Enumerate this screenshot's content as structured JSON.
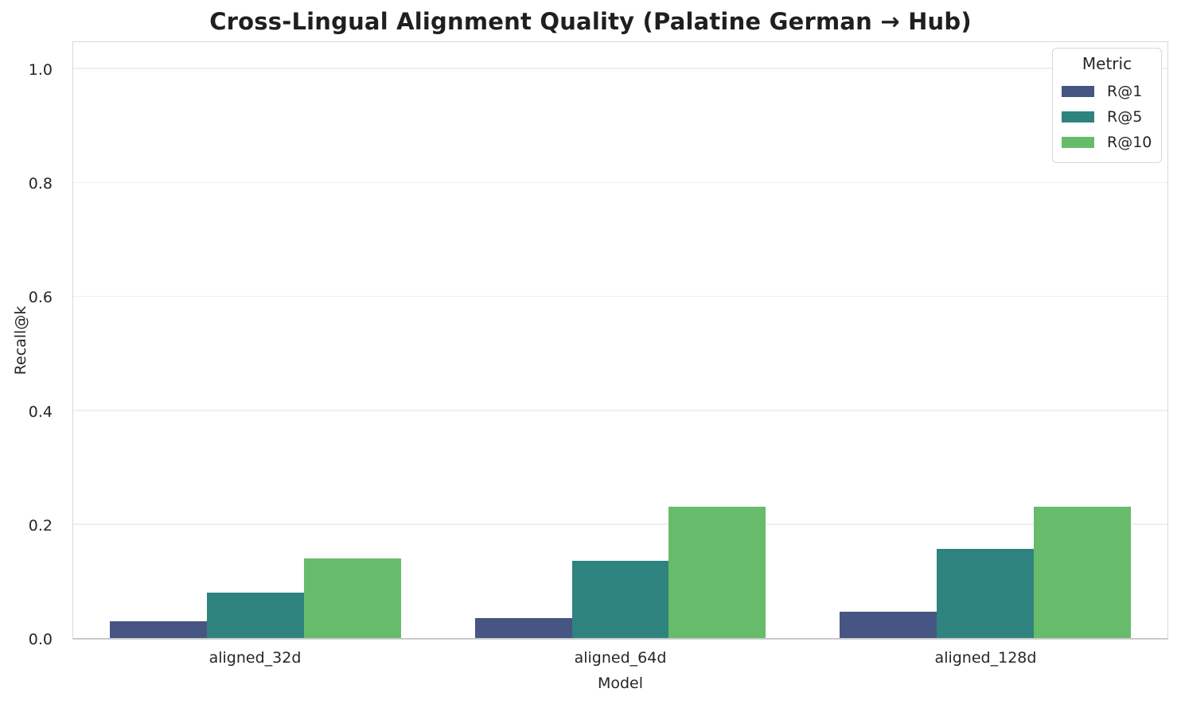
{
  "chart_data": {
    "type": "bar",
    "title": "Cross-Lingual Alignment Quality (Palatine German → Hub)",
    "xlabel": "Model",
    "ylabel": "Recall@k",
    "categories": [
      "aligned_32d",
      "aligned_64d",
      "aligned_128d"
    ],
    "series": [
      {
        "name": "R@1",
        "color": "#475583",
        "values": [
          0.03,
          0.035,
          0.046
        ]
      },
      {
        "name": "R@5",
        "color": "#2E837E",
        "values": [
          0.08,
          0.136,
          0.157
        ]
      },
      {
        "name": "R@10",
        "color": "#67BC6B",
        "values": [
          0.14,
          0.231,
          0.231
        ]
      }
    ],
    "ylim": [
      0,
      1.05
    ],
    "yticks": [
      0.0,
      0.2,
      0.4,
      0.6,
      0.8,
      1.0
    ],
    "grid": "horizontal",
    "gridcolor": "#efefef",
    "legend": {
      "title": "Metric",
      "position": "upper right"
    }
  }
}
